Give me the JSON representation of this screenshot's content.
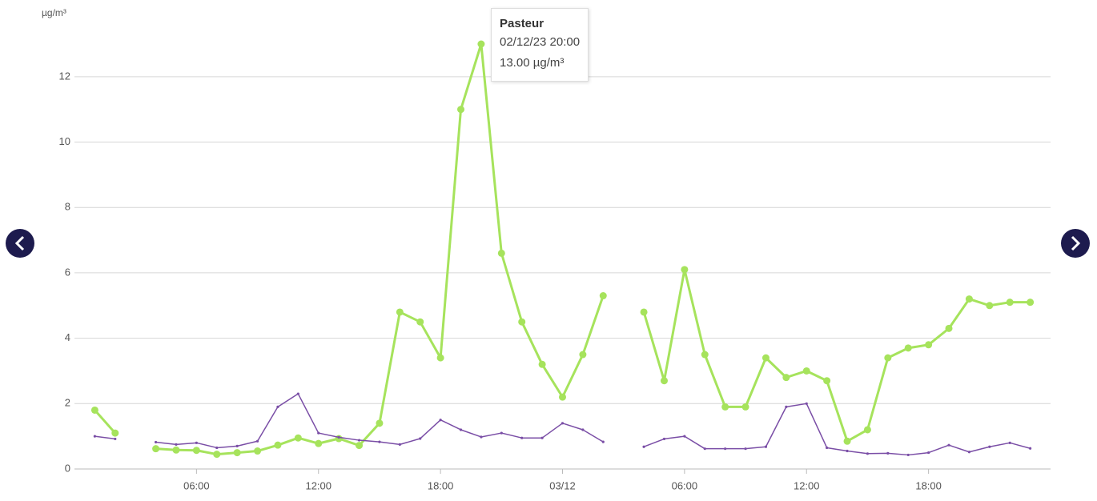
{
  "chart_data": {
    "type": "line",
    "y_label": "µg/m³",
    "categories": [
      null,
      null,
      null,
      null,
      null,
      "06:00",
      null,
      null,
      null,
      null,
      null,
      "12:00",
      null,
      null,
      null,
      null,
      null,
      "18:00",
      null,
      null,
      null,
      null,
      null,
      "03/12",
      null,
      null,
      null,
      null,
      null,
      "06:00",
      null,
      null,
      null,
      null,
      null,
      "12:00",
      null,
      null,
      null,
      null,
      null,
      "18:00",
      null,
      null,
      null,
      null,
      null
    ],
    "series": [
      {
        "name": "Pasteur",
        "color": "#a6e35c",
        "values": [
          1.8,
          1.1,
          null,
          0.62,
          0.58,
          0.57,
          0.45,
          0.5,
          0.55,
          0.73,
          0.95,
          0.78,
          0.93,
          0.72,
          1.4,
          4.8,
          4.5,
          3.4,
          11.0,
          13.0,
          6.6,
          4.5,
          3.2,
          2.2,
          3.5,
          5.3,
          null,
          4.8,
          2.7,
          6.1,
          3.5,
          1.9,
          1.9,
          3.4,
          2.8,
          3.0,
          2.7,
          0.85,
          1.2,
          3.4,
          3.7,
          3.8,
          4.3,
          5.2,
          5.0,
          5.1,
          5.1
        ]
      },
      {
        "color": "#7a4ea6",
        "values": [
          1.0,
          0.92,
          null,
          0.82,
          0.75,
          0.8,
          0.65,
          0.7,
          0.85,
          1.9,
          2.3,
          1.1,
          0.97,
          0.88,
          0.83,
          0.75,
          0.93,
          1.5,
          1.2,
          0.98,
          1.1,
          0.95,
          0.95,
          1.4,
          1.2,
          0.83,
          null,
          0.68,
          0.92,
          1.0,
          0.62,
          0.62,
          0.62,
          0.68,
          1.9,
          2.0,
          0.65,
          0.55,
          0.47,
          0.48,
          0.43,
          0.5,
          0.73,
          0.52,
          0.68,
          0.8,
          0.63
        ]
      }
    ],
    "ylim": [
      0,
      13
    ],
    "yticks": [
      0,
      2,
      4,
      6,
      8,
      10,
      12
    ],
    "grid": true,
    "tooltip": {
      "time": "02/12/23 20:00",
      "value_label": "13.00 µg/m³"
    }
  }
}
